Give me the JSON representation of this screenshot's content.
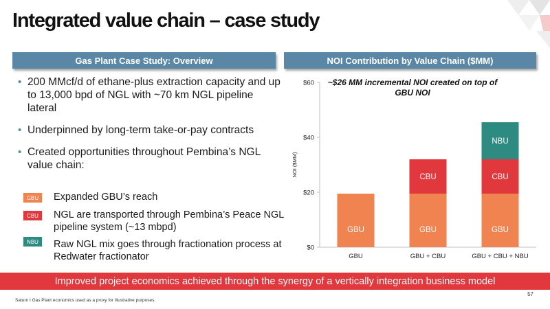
{
  "slide": {
    "title": "Integrated value chain – case study",
    "page_number": "57",
    "footnote": "Saturn I Gas Plant economics used as a proxy for illustrative purposes.",
    "banner": "Improved project economics achieved through the synergy of a vertically integration business model"
  },
  "left": {
    "header": "Gas Plant Case Study: Overview",
    "bullets": [
      "200 MMcf/d of ethane-plus extraction capacity and up to 13,000 bpd of NGL with ~70 km NGL pipeline lateral",
      "Underpinned by long-term take-or-pay contracts",
      "Created opportunities throughout Pembina’s NGL value chain:"
    ],
    "legend": [
      {
        "chip": "GBU",
        "text": "Expanded GBU’s reach",
        "color": "#f0834f"
      },
      {
        "chip": "CBU",
        "text": "NGL are transported through Pembina’s Peace NGL pipeline system (~13 mbpd)",
        "color": "#e1383e"
      },
      {
        "chip": "NBU",
        "text": "Raw NGL mix goes through fractionation process at Redwater fractionator",
        "color": "#2e8b82"
      }
    ]
  },
  "right": {
    "header": "NOI Contribution by Value Chain ($MM)"
  },
  "chart_data": {
    "type": "bar",
    "stacked": true,
    "title": "~$26 MM incremental NOI created on top of GBU NOI",
    "ylabel": "NOI ($MM)",
    "xlabel": "",
    "ylim": [
      0,
      60
    ],
    "yticks": [
      0,
      20,
      40,
      60
    ],
    "ytick_labels": [
      "$0",
      "$20",
      "$40",
      "$60"
    ],
    "grid": false,
    "legend": "none",
    "categories": [
      "GBU",
      "GBU + CBU",
      "GBU + CBU + NBU"
    ],
    "series": [
      {
        "name": "GBU",
        "color": "#f0834f",
        "values": [
          19.5,
          19.5,
          19.5
        ]
      },
      {
        "name": "CBU",
        "color": "#e1383e",
        "values": [
          0,
          12.5,
          12.5
        ]
      },
      {
        "name": "NBU",
        "color": "#2e8b82",
        "values": [
          0,
          0,
          13.5
        ]
      }
    ]
  },
  "colors": {
    "header_bg": "#5a87a6",
    "banner_bg": "#e1383e",
    "gbu": "#f0834f",
    "cbu": "#e1383e",
    "nbu": "#2e8b82"
  }
}
